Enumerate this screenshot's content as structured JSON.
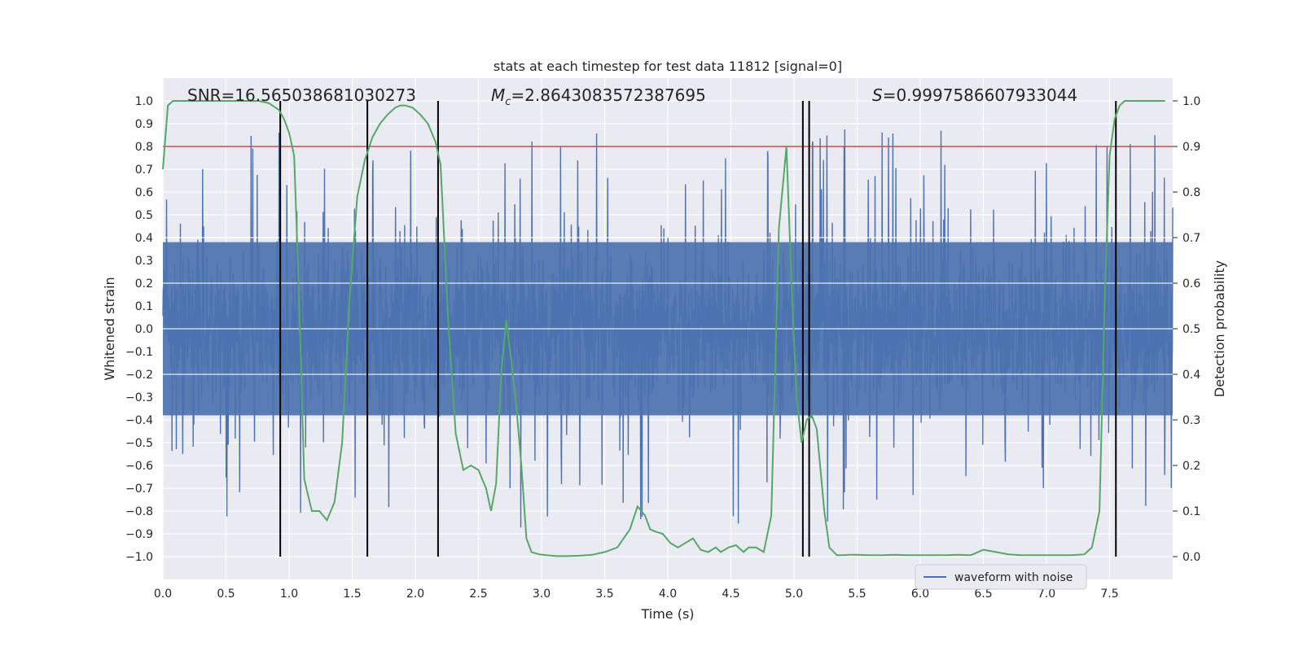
{
  "chart_data": {
    "type": "line",
    "title": "stats at each timestep for test data 11812 [signal=0]",
    "xlabel": "Time (s)",
    "ylabel": "Whitened strain",
    "y2label": "Detection probability",
    "xlim": [
      0.0,
      8.0
    ],
    "ylim": [
      -1.1,
      1.1
    ],
    "y2lim": [
      -0.05,
      1.05
    ],
    "xticks": [
      "0.0",
      "0.5",
      "1.0",
      "1.5",
      "2.0",
      "2.5",
      "3.0",
      "3.5",
      "4.0",
      "4.5",
      "5.0",
      "5.5",
      "6.0",
      "6.5",
      "7.0",
      "7.5"
    ],
    "xtick_values": [
      0.0,
      0.5,
      1.0,
      1.5,
      2.0,
      2.5,
      3.0,
      3.5,
      4.0,
      4.5,
      5.0,
      5.5,
      6.0,
      6.5,
      7.0,
      7.5
    ],
    "yticks": [
      "−1.0",
      "−0.9",
      "−0.8",
      "−0.7",
      "−0.6",
      "−0.5",
      "−0.4",
      "−0.3",
      "−0.2",
      "−0.1",
      "0.0",
      "0.1",
      "0.2",
      "0.3",
      "0.4",
      "0.5",
      "0.6",
      "0.7",
      "0.8",
      "0.9",
      "1.0"
    ],
    "ytick_values": [
      -1.0,
      -0.9,
      -0.8,
      -0.7,
      -0.6,
      -0.5,
      -0.4,
      -0.3,
      -0.2,
      -0.1,
      0.0,
      0.1,
      0.2,
      0.3,
      0.4,
      0.5,
      0.6,
      0.7,
      0.8,
      0.9,
      1.0
    ],
    "y2ticks": [
      "0.0",
      "0.1",
      "0.2",
      "0.3",
      "0.4",
      "0.5",
      "0.6",
      "0.7",
      "0.8",
      "0.9",
      "1.0"
    ],
    "y2tick_values": [
      0.0,
      0.1,
      0.2,
      0.3,
      0.4,
      0.5,
      0.6,
      0.7,
      0.8,
      0.9,
      1.0
    ],
    "annotations": {
      "snr": "SNR=16.565038681030273",
      "mc_symbol": "M",
      "mc_sub": "c",
      "mc_value": "=2.8643083572387695",
      "s_symbol": "S",
      "s_value": "=0.9997586607933044"
    },
    "legend": {
      "label": "waveform with noise",
      "placement": "lower-right"
    },
    "series": [
      {
        "name": "waveform with noise",
        "axis": "left",
        "color": "#4c72b0",
        "kind": "noise",
        "typical_envelope": [
          -0.38,
          0.38
        ],
        "max": 0.92,
        "min": -1.0,
        "points": 8000
      },
      {
        "axis": "right",
        "color": "#55a868",
        "x": [
          0.0,
          0.04,
          0.08,
          0.12,
          0.2,
          0.3,
          0.4,
          0.5,
          0.6,
          0.7,
          0.76,
          0.84,
          0.92,
          0.96,
          1.0,
          1.04,
          1.08,
          1.12,
          1.18,
          1.24,
          1.3,
          1.36,
          1.42,
          1.48,
          1.54,
          1.6,
          1.66,
          1.72,
          1.78,
          1.84,
          1.88,
          1.92,
          1.98,
          2.04,
          2.1,
          2.16,
          2.2,
          2.26,
          2.32,
          2.38,
          2.44,
          2.5,
          2.56,
          2.6,
          2.64,
          2.68,
          2.72,
          2.76,
          2.8,
          2.84,
          2.88,
          2.92,
          2.98,
          3.04,
          3.08,
          3.12,
          3.2,
          3.3,
          3.4,
          3.5,
          3.6,
          3.7,
          3.76,
          3.82,
          3.86,
          3.9,
          3.96,
          4.02,
          4.08,
          4.14,
          4.2,
          4.26,
          4.32,
          4.38,
          4.42,
          4.48,
          4.54,
          4.6,
          4.64,
          4.7,
          4.76,
          4.82,
          4.88,
          4.94,
          4.98,
          5.02,
          5.06,
          5.1,
          5.14,
          5.18,
          5.24,
          5.28,
          5.34,
          5.38,
          5.44,
          5.5,
          5.6,
          5.7,
          5.8,
          5.9,
          6.0,
          6.1,
          6.2,
          6.3,
          6.4,
          6.5,
          6.6,
          6.7,
          6.8,
          6.9,
          7.0,
          7.1,
          7.2,
          7.3,
          7.36,
          7.42,
          7.46,
          7.5,
          7.54,
          7.58,
          7.62,
          7.68,
          7.76,
          7.86,
          7.94
        ],
        "values": [
          0.85,
          0.99,
          1.0,
          1.0,
          1.0,
          1.0,
          1.0,
          1.0,
          1.0,
          1.0,
          1.0,
          0.995,
          0.98,
          0.96,
          0.93,
          0.88,
          0.56,
          0.17,
          0.1,
          0.1,
          0.08,
          0.12,
          0.25,
          0.57,
          0.79,
          0.87,
          0.92,
          0.95,
          0.97,
          0.985,
          0.99,
          0.99,
          0.985,
          0.97,
          0.95,
          0.91,
          0.86,
          0.52,
          0.27,
          0.19,
          0.2,
          0.19,
          0.15,
          0.1,
          0.16,
          0.4,
          0.52,
          0.43,
          0.33,
          0.2,
          0.04,
          0.01,
          0.005,
          0.003,
          0.002,
          0.001,
          0.001,
          0.002,
          0.004,
          0.01,
          0.02,
          0.06,
          0.11,
          0.09,
          0.06,
          0.055,
          0.05,
          0.03,
          0.02,
          0.03,
          0.04,
          0.015,
          0.01,
          0.02,
          0.01,
          0.02,
          0.025,
          0.01,
          0.02,
          0.02,
          0.01,
          0.09,
          0.72,
          0.9,
          0.6,
          0.35,
          0.25,
          0.3,
          0.31,
          0.28,
          0.1,
          0.02,
          0.003,
          0.003,
          0.004,
          0.004,
          0.003,
          0.003,
          0.004,
          0.003,
          0.003,
          0.003,
          0.003,
          0.004,
          0.003,
          0.015,
          0.01,
          0.005,
          0.003,
          0.003,
          0.003,
          0.003,
          0.003,
          0.005,
          0.02,
          0.1,
          0.55,
          0.88,
          0.96,
          0.99,
          1.0,
          1.0,
          1.0,
          1.0,
          1.0
        ]
      }
    ],
    "threshold": {
      "value": 0.9,
      "axis": "right",
      "color": "#c44e52"
    },
    "event_lines": [
      0.93,
      1.62,
      2.18,
      5.07,
      5.12,
      7.55
    ],
    "event_line_range": [
      0.0,
      1.0
    ],
    "event_line_color": "#000000",
    "grid": true,
    "colors": {
      "plot_bg": "#eaeaf2",
      "grid": "#ffffff",
      "text": "#262626"
    }
  }
}
